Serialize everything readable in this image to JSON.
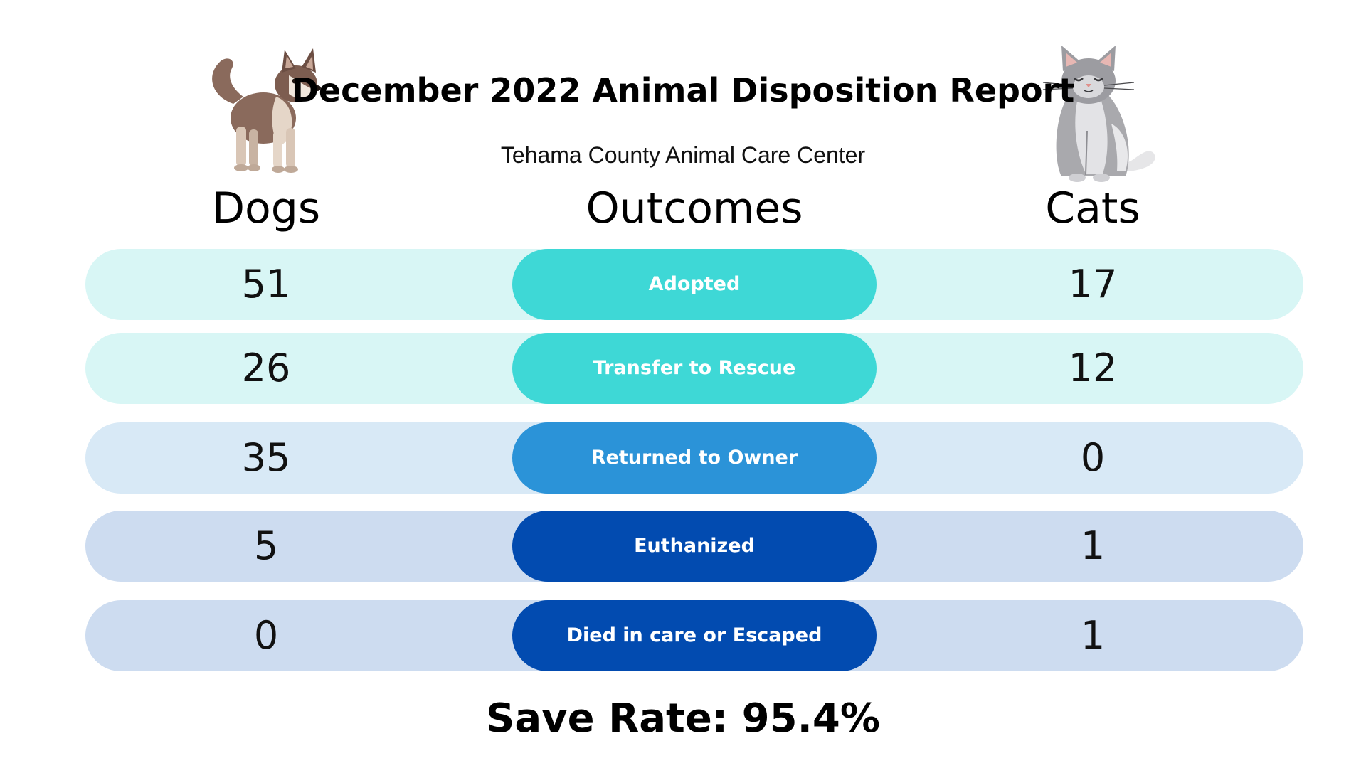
{
  "header": {
    "title": "December 2022 Animal Disposition Report",
    "subtitle": "Tehama County Animal Care Center"
  },
  "columns": {
    "dogs": "Dogs",
    "outcomes": "Outcomes",
    "cats": "Cats"
  },
  "rows": [
    {
      "outcome": "Adopted",
      "dogs": "51",
      "cats": "17",
      "row_color": "#d8f6f5",
      "pill_color": "#3ed8d6"
    },
    {
      "outcome": "Transfer to Rescue",
      "dogs": "26",
      "cats": "12",
      "row_color": "#d8f6f5",
      "pill_color": "#3ed8d6"
    },
    {
      "outcome": "Returned to Owner",
      "dogs": "35",
      "cats": "0",
      "row_color": "#d8e9f6",
      "pill_color": "#2b93d8"
    },
    {
      "outcome": "Euthanized",
      "dogs": "5",
      "cats": "1",
      "row_color": "#cddcf0",
      "pill_color": "#024bb0"
    },
    {
      "outcome": "Died in care or Escaped",
      "dogs": "0",
      "cats": "1",
      "row_color": "#cddcf0",
      "pill_color": "#024bb0"
    }
  ],
  "footer": {
    "save_rate": "Save Rate: 95.4%"
  },
  "icons": {
    "dog": "dog-illustration-icon",
    "cat": "cat-illustration-icon"
  }
}
